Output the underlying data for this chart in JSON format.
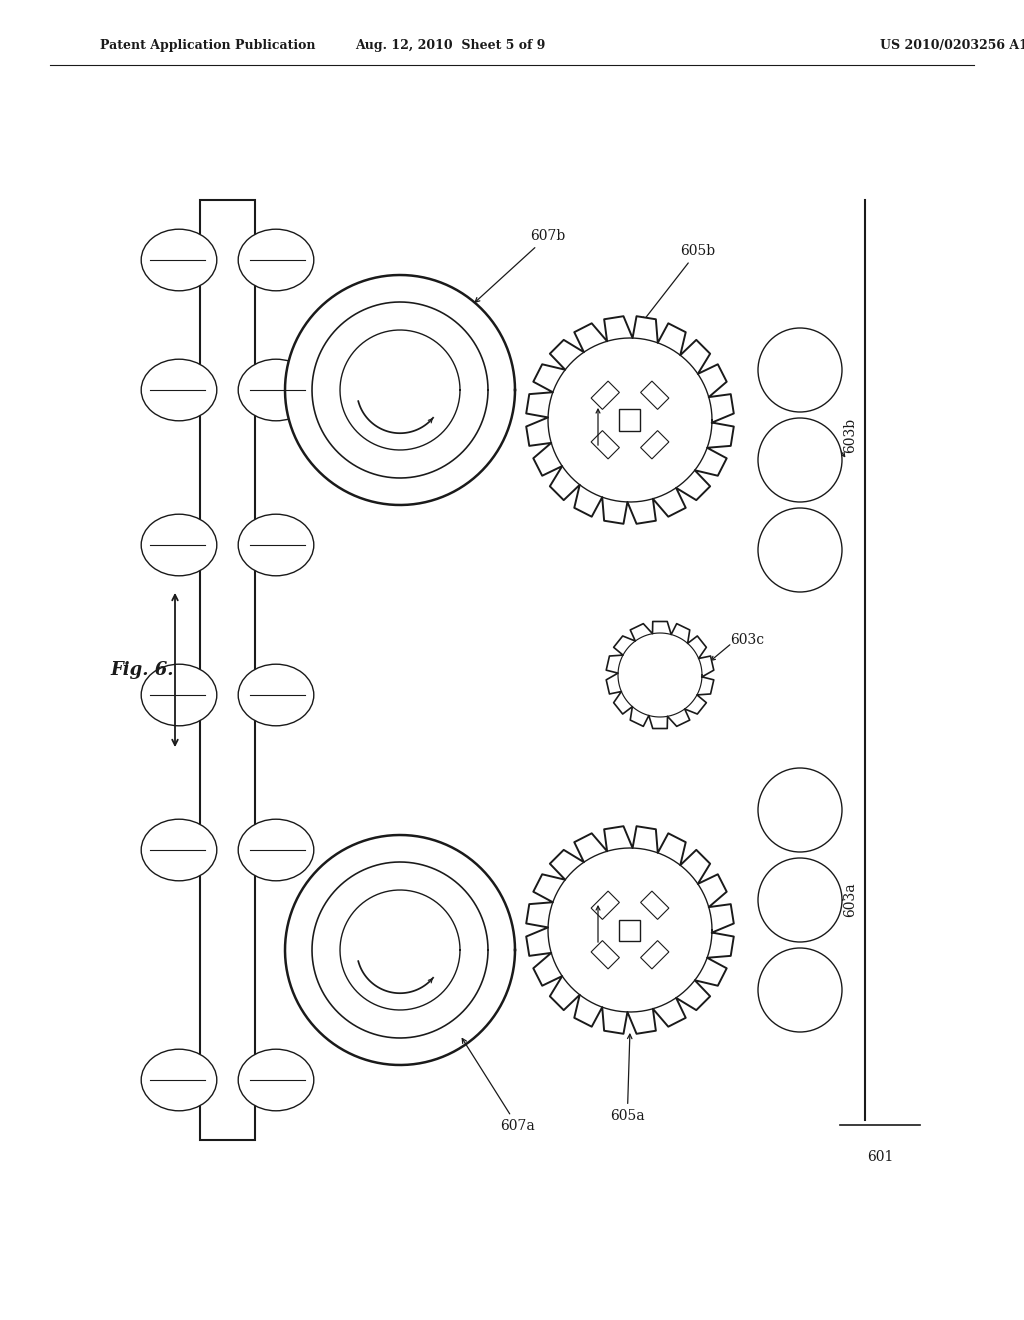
{
  "bg_color": "#ffffff",
  "line_color": "#1a1a1a",
  "header_left": "Patent Application Publication",
  "header_mid": "Aug. 12, 2010  Sheet 5 of 9",
  "header_right": "US 2010/0203256 A1",
  "fig_label": "Fig. 6.",
  "label_601": "601",
  "label_603a": "603a",
  "label_603b": "603b",
  "label_603c": "603c",
  "label_605a": "605a",
  "label_605b": "605b",
  "label_607a": "607a",
  "label_607b": "607b"
}
